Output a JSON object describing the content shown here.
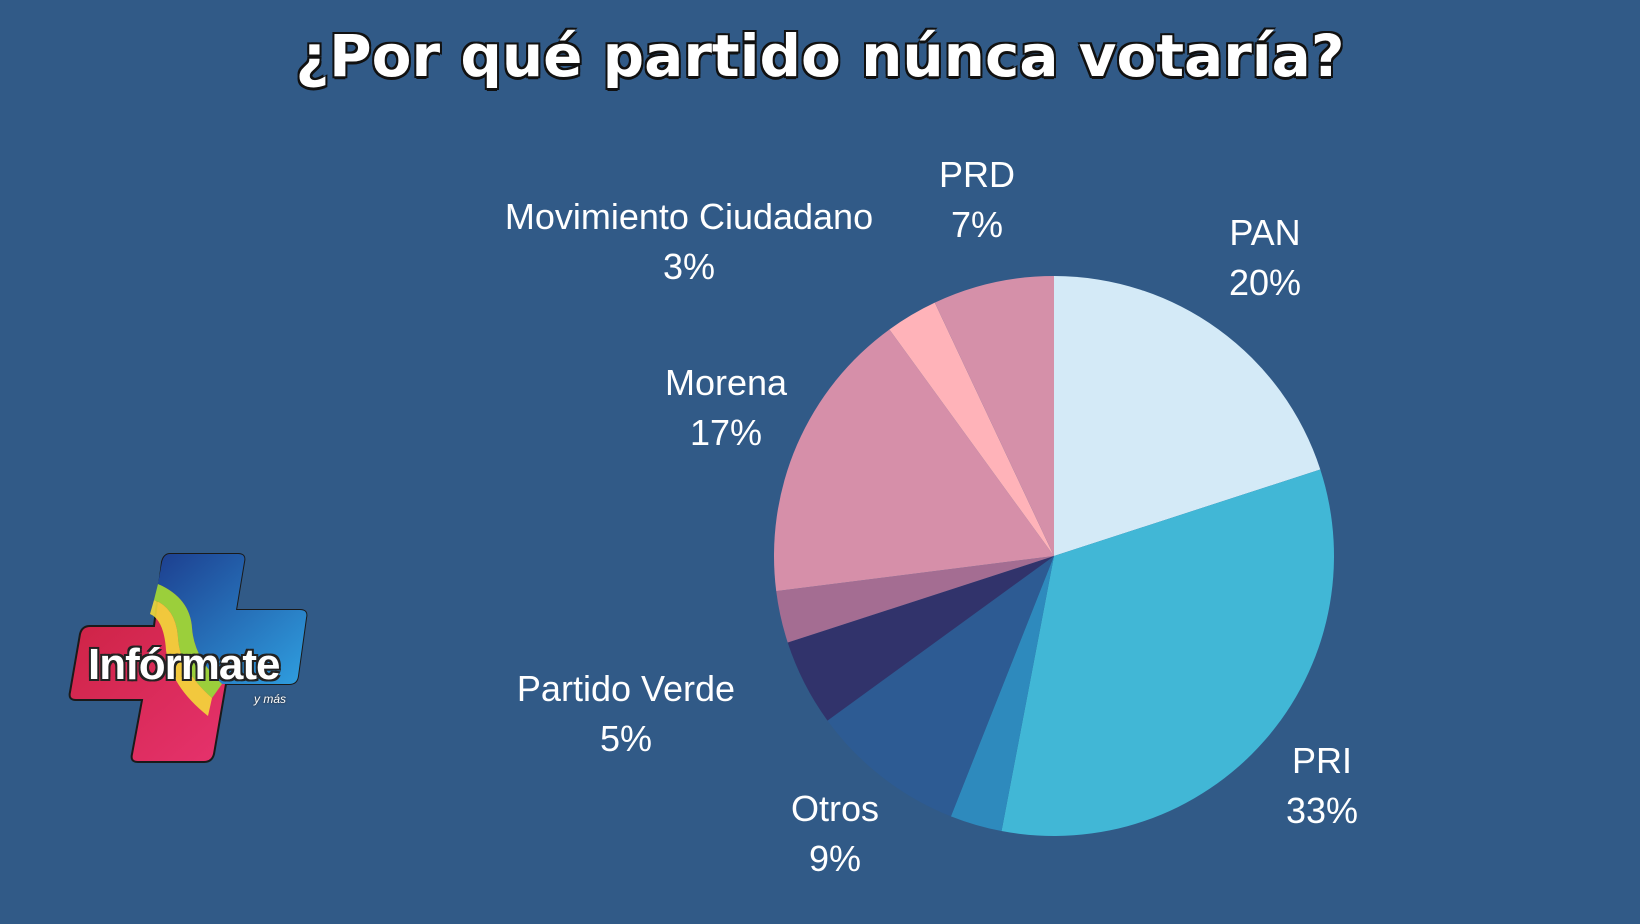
{
  "chart_data": {
    "type": "pie",
    "title": "¿Por qué partido núnca votaría?",
    "slices": [
      {
        "label": "PAN",
        "value": 20,
        "value_label": "20%",
        "color": "#d4eaf7"
      },
      {
        "label": "PRI",
        "value": 33,
        "value_label": "33%",
        "color": "#41b7d6"
      },
      {
        "label": "",
        "value": 3,
        "value_label": "",
        "color": "#2e8abd"
      },
      {
        "label": "Otros",
        "value": 9,
        "value_label": "9%",
        "color": "#2d5b93"
      },
      {
        "label": "Partido Verde",
        "value": 5,
        "value_label": "5%",
        "color": "#31336b"
      },
      {
        "label": "",
        "value": 3,
        "value_label": "",
        "color": "#a46d92"
      },
      {
        "label": "Morena",
        "value": 17,
        "value_label": "17%",
        "color": "#d68fa9"
      },
      {
        "label": "Movimiento Ciudadano",
        "value": 3,
        "value_label": "3%",
        "color": "#ffb3b9"
      },
      {
        "label": "PRD",
        "value": 7,
        "value_label": "7%",
        "color": "#d590a9"
      }
    ],
    "start_angle": "12 o'clock",
    "direction": "clockwise",
    "legend": "none"
  },
  "logo": {
    "name": "Infórmate",
    "subtitle": "y más"
  }
}
